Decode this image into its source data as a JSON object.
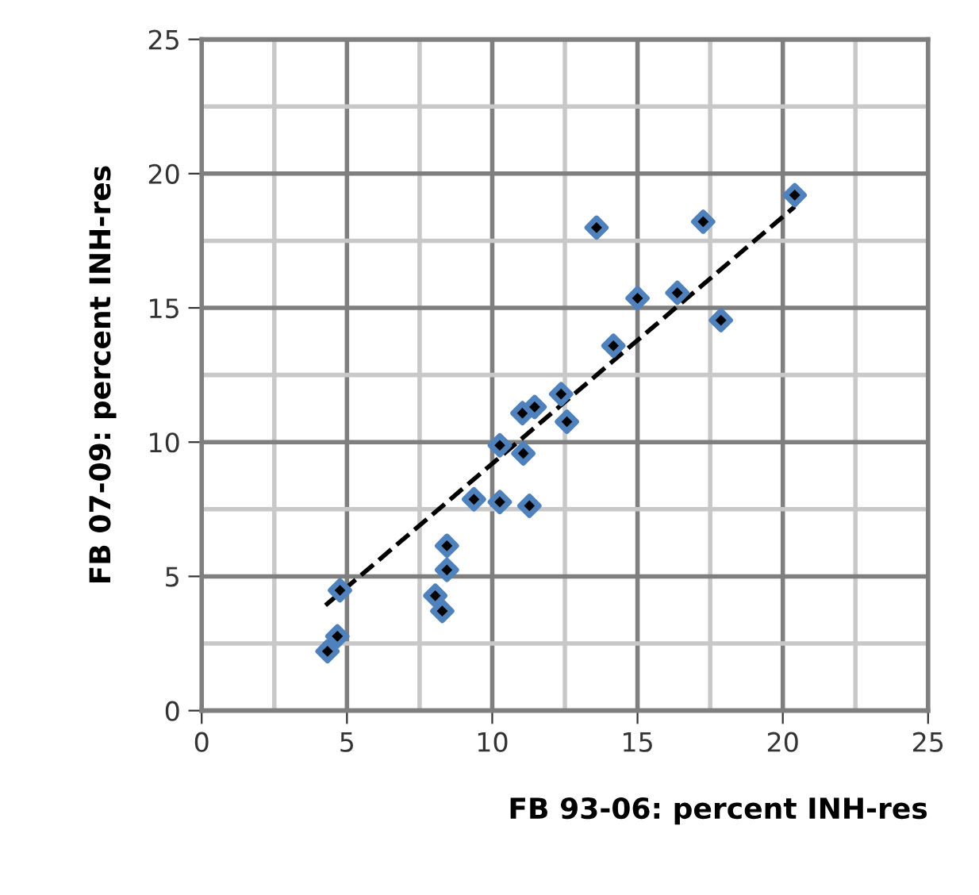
{
  "chart_data": {
    "type": "scatter",
    "xlabel": "FB 93-06: percent INH-res",
    "ylabel": "FB 07-09: percent INH-res",
    "xlim": [
      0,
      25
    ],
    "ylim": [
      0,
      25
    ],
    "xticks": [
      0,
      {
        "value": 2.5,
        "label": null
      },
      5,
      {
        "value": 7.5,
        "label": null
      },
      10,
      {
        "value": 12.5,
        "label": null
      },
      15,
      {
        "value": 17.5,
        "label": null
      },
      20,
      {
        "value": 22.5,
        "label": null
      },
      25
    ],
    "yticks": [
      0,
      {
        "value": 2.5,
        "label": null
      },
      5,
      {
        "value": 7.5,
        "label": null
      },
      10,
      {
        "value": 12.5,
        "label": null
      },
      15,
      {
        "value": 17.5,
        "label": null
      },
      20,
      {
        "value": 22.5,
        "label": null
      },
      25
    ],
    "grid": true,
    "marker": "diamond",
    "series": [
      {
        "color": "#4f81bd",
        "x": [
          4.33,
          4.67,
          4.76,
          8.04,
          8.28,
          8.44,
          8.44,
          9.37,
          10.26,
          11.28,
          10.26,
          11.07,
          11.04,
          11.46,
          12.37,
          12.57,
          13.59,
          14.17,
          15.0,
          16.37,
          17.87,
          17.26,
          20.41
        ],
        "values": [
          2.21,
          2.77,
          4.48,
          4.28,
          3.71,
          5.24,
          6.14,
          7.87,
          7.77,
          7.63,
          9.88,
          9.58,
          11.08,
          11.31,
          11.79,
          10.76,
          17.99,
          13.59,
          15.36,
          15.56,
          14.54,
          18.21,
          19.2
        ]
      },
      {
        "type": "line",
        "color": "#000000",
        "line_style": "dashed",
        "marker": "none",
        "x": [
          4.26,
          20.41
        ],
        "values": [
          3.92,
          18.77
        ]
      }
    ]
  }
}
